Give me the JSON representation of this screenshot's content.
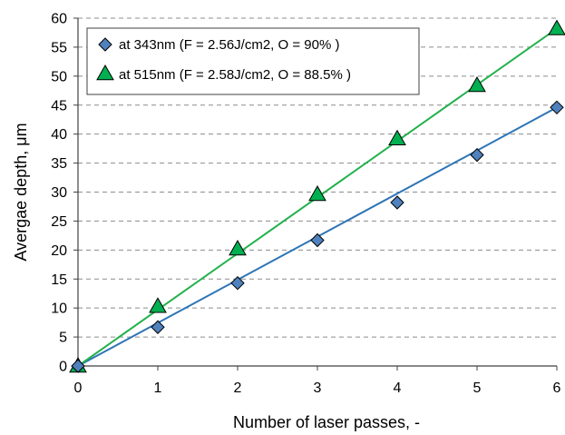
{
  "chart_data": {
    "type": "scatter",
    "xlabel": "Number of laser passes, -",
    "ylabel": "Avergae depth, μm",
    "xlim": [
      0,
      6
    ],
    "ylim": [
      0,
      60
    ],
    "x_ticks": [
      0,
      1,
      2,
      3,
      4,
      5,
      6
    ],
    "y_ticks": [
      0,
      5,
      10,
      15,
      20,
      25,
      30,
      35,
      40,
      45,
      50,
      55,
      60
    ],
    "grid": "horizontal-dashed",
    "legend_position": "top-left",
    "series": [
      {
        "name": "at 343nm (F = 2.56J/cm2, O = 90% )",
        "marker": "diamond",
        "marker_color": "#4f81bd",
        "line_color": "#2e75b6",
        "x": [
          0,
          1,
          2,
          3,
          4,
          5,
          6
        ],
        "y": [
          0,
          6.7,
          14.3,
          21.7,
          28.2,
          36.4,
          44.6
        ],
        "fit": [
          [
            0,
            0
          ],
          [
            6,
            44.6
          ]
        ]
      },
      {
        "name": "at 515nm (F = 2.58J/cm2, O = 88.5% )",
        "marker": "triangle",
        "marker_color": "#00b050",
        "line_color": "#22b14c",
        "x": [
          0,
          1,
          2,
          3,
          4,
          5,
          6
        ],
        "y": [
          0,
          10.3,
          20.2,
          29.6,
          39.2,
          48.4,
          58.2
        ],
        "fit": [
          [
            0,
            0
          ],
          [
            6,
            58.2
          ]
        ]
      }
    ]
  }
}
